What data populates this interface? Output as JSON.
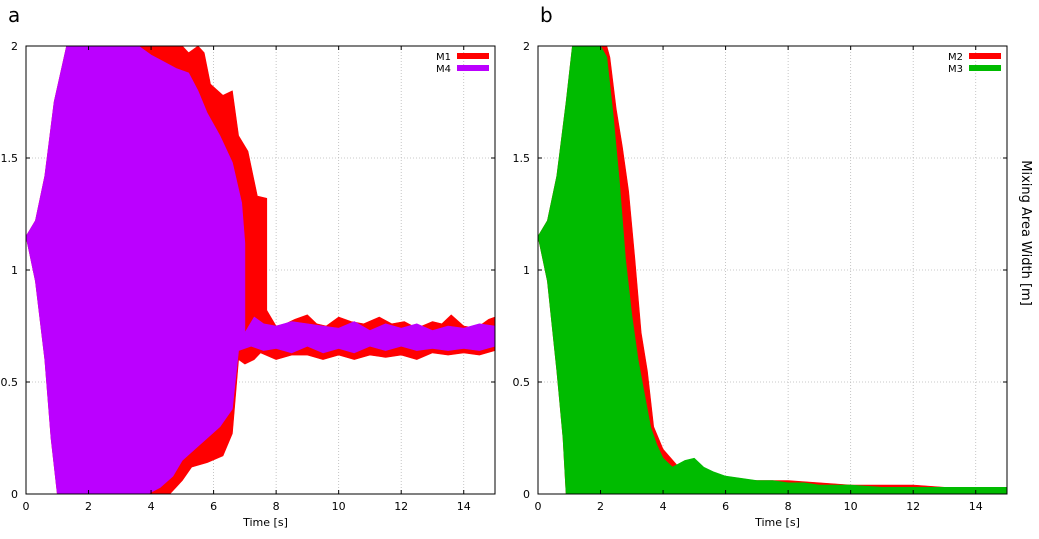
{
  "ylabel": "Mixing Area Width [m]",
  "chart_data": [
    {
      "type": "area",
      "panel_label": "a",
      "xlabel": "Time [s]",
      "xlim": [
        0,
        15
      ],
      "ylim": [
        0,
        2
      ],
      "xticks": [
        0,
        2,
        4,
        6,
        8,
        10,
        12,
        14
      ],
      "yticks": [
        0,
        0.5,
        1,
        1.5,
        2
      ],
      "ytick_labels": [
        "0",
        "0.5",
        "1",
        "1.5",
        "2"
      ],
      "grid": true,
      "legend_position": "top-right",
      "series": [
        {
          "name": "M1",
          "color": "#ff0000",
          "upper": [
            [
              0,
              1.15
            ],
            [
              0.3,
              1.22
            ],
            [
              0.6,
              1.42
            ],
            [
              0.9,
              1.75
            ],
            [
              1.3,
              2.0
            ],
            [
              5.0,
              2.0
            ],
            [
              5.2,
              1.97
            ],
            [
              5.5,
              2.0
            ],
            [
              5.7,
              1.97
            ],
            [
              5.9,
              1.83
            ],
            [
              6.3,
              1.78
            ],
            [
              6.6,
              1.8
            ],
            [
              6.8,
              1.6
            ],
            [
              7.1,
              1.53
            ],
            [
              7.4,
              1.33
            ],
            [
              7.7,
              1.32
            ],
            [
              7.7,
              0.82
            ],
            [
              8.0,
              0.75
            ],
            [
              8.3,
              0.76
            ],
            [
              8.6,
              0.78
            ],
            [
              9.0,
              0.8
            ],
            [
              9.3,
              0.76
            ],
            [
              9.6,
              0.75
            ],
            [
              10.0,
              0.79
            ],
            [
              10.4,
              0.77
            ],
            [
              10.8,
              0.76
            ],
            [
              11.3,
              0.79
            ],
            [
              11.7,
              0.76
            ],
            [
              12.1,
              0.77
            ],
            [
              12.5,
              0.74
            ],
            [
              13.0,
              0.77
            ],
            [
              13.3,
              0.76
            ],
            [
              13.6,
              0.8
            ],
            [
              14.0,
              0.75
            ],
            [
              14.4,
              0.74
            ],
            [
              14.8,
              0.78
            ],
            [
              15.0,
              0.79
            ]
          ],
          "lower": [
            [
              0,
              1.15
            ],
            [
              0.3,
              0.95
            ],
            [
              0.6,
              0.6
            ],
            [
              0.8,
              0.25
            ],
            [
              1.0,
              0.0
            ],
            [
              4.6,
              0.0
            ],
            [
              4.8,
              0.03
            ],
            [
              5.0,
              0.06
            ],
            [
              5.3,
              0.12
            ],
            [
              5.8,
              0.14
            ],
            [
              6.3,
              0.17
            ],
            [
              6.6,
              0.27
            ],
            [
              6.8,
              0.6
            ],
            [
              7.0,
              0.58
            ],
            [
              7.3,
              0.6
            ],
            [
              7.5,
              0.63
            ],
            [
              8.0,
              0.6
            ],
            [
              8.5,
              0.62
            ],
            [
              9.0,
              0.62
            ],
            [
              9.5,
              0.6
            ],
            [
              10.0,
              0.62
            ],
            [
              10.5,
              0.6
            ],
            [
              11.0,
              0.62
            ],
            [
              11.5,
              0.61
            ],
            [
              12.0,
              0.62
            ],
            [
              12.5,
              0.6
            ],
            [
              13.0,
              0.63
            ],
            [
              13.5,
              0.62
            ],
            [
              14.0,
              0.63
            ],
            [
              14.5,
              0.62
            ],
            [
              15.0,
              0.64
            ]
          ]
        },
        {
          "name": "M4",
          "color": "#bb00ff",
          "upper": [
            [
              0,
              1.15
            ],
            [
              0.3,
              1.22
            ],
            [
              0.6,
              1.42
            ],
            [
              0.9,
              1.75
            ],
            [
              1.3,
              2.0
            ],
            [
              3.6,
              2.0
            ],
            [
              4.0,
              1.96
            ],
            [
              4.4,
              1.93
            ],
            [
              4.8,
              1.9
            ],
            [
              5.2,
              1.88
            ],
            [
              5.5,
              1.8
            ],
            [
              5.8,
              1.7
            ],
            [
              6.2,
              1.6
            ],
            [
              6.6,
              1.48
            ],
            [
              6.9,
              1.3
            ],
            [
              7.0,
              1.12
            ],
            [
              7.0,
              0.72
            ],
            [
              7.3,
              0.79
            ],
            [
              7.6,
              0.76
            ],
            [
              8.0,
              0.75
            ],
            [
              8.5,
              0.77
            ],
            [
              9.0,
              0.76
            ],
            [
              9.5,
              0.75
            ],
            [
              10.0,
              0.74
            ],
            [
              10.5,
              0.77
            ],
            [
              11.0,
              0.73
            ],
            [
              11.5,
              0.76
            ],
            [
              12.0,
              0.74
            ],
            [
              12.5,
              0.76
            ],
            [
              13.0,
              0.73
            ],
            [
              13.5,
              0.75
            ],
            [
              14.0,
              0.74
            ],
            [
              14.5,
              0.76
            ],
            [
              15.0,
              0.75
            ]
          ],
          "lower": [
            [
              0,
              1.15
            ],
            [
              0.3,
              0.95
            ],
            [
              0.6,
              0.6
            ],
            [
              0.8,
              0.25
            ],
            [
              1.0,
              0.0
            ],
            [
              3.9,
              0.0
            ],
            [
              4.3,
              0.03
            ],
            [
              4.7,
              0.08
            ],
            [
              5.0,
              0.15
            ],
            [
              5.4,
              0.2
            ],
            [
              5.8,
              0.25
            ],
            [
              6.2,
              0.3
            ],
            [
              6.6,
              0.38
            ],
            [
              6.8,
              0.64
            ],
            [
              7.2,
              0.66
            ],
            [
              7.6,
              0.64
            ],
            [
              8.0,
              0.65
            ],
            [
              8.5,
              0.63
            ],
            [
              9.0,
              0.66
            ],
            [
              9.5,
              0.63
            ],
            [
              10.0,
              0.65
            ],
            [
              10.5,
              0.63
            ],
            [
              11.0,
              0.66
            ],
            [
              11.5,
              0.64
            ],
            [
              12.0,
              0.66
            ],
            [
              12.5,
              0.64
            ],
            [
              13.0,
              0.65
            ],
            [
              13.5,
              0.64
            ],
            [
              14.0,
              0.65
            ],
            [
              14.5,
              0.64
            ],
            [
              15.0,
              0.66
            ]
          ]
        }
      ]
    },
    {
      "type": "area",
      "panel_label": "b",
      "xlabel": "Time [s]",
      "xlim": [
        0,
        15
      ],
      "ylim": [
        0,
        2
      ],
      "xticks": [
        0,
        2,
        4,
        6,
        8,
        10,
        12,
        14
      ],
      "yticks": [
        0,
        0.5,
        1,
        1.5,
        2
      ],
      "ytick_labels": [
        "0",
        "0.5",
        "1",
        "1.5",
        "2"
      ],
      "grid": true,
      "legend_position": "top-right",
      "series": [
        {
          "name": "M2",
          "color": "#ff0000",
          "upper": [
            [
              0,
              1.15
            ],
            [
              0.3,
              1.22
            ],
            [
              0.6,
              1.42
            ],
            [
              0.9,
              1.75
            ],
            [
              1.1,
              2.0
            ],
            [
              2.2,
              2.0
            ],
            [
              2.3,
              1.95
            ],
            [
              2.5,
              1.72
            ],
            [
              2.7,
              1.55
            ],
            [
              2.9,
              1.35
            ],
            [
              3.1,
              1.05
            ],
            [
              3.3,
              0.72
            ],
            [
              3.5,
              0.55
            ],
            [
              3.7,
              0.3
            ],
            [
              4.0,
              0.2
            ],
            [
              4.5,
              0.12
            ],
            [
              5.0,
              0.1
            ],
            [
              5.5,
              0.08
            ],
            [
              6.0,
              0.07
            ],
            [
              7.0,
              0.06
            ],
            [
              8.0,
              0.06
            ],
            [
              9.0,
              0.05
            ],
            [
              10.0,
              0.04
            ],
            [
              11.0,
              0.04
            ],
            [
              12.0,
              0.04
            ],
            [
              13.0,
              0.03
            ],
            [
              14.0,
              0.03
            ],
            [
              15.0,
              0.03
            ]
          ],
          "lower": [
            [
              0,
              1.15
            ],
            [
              0.3,
              0.95
            ],
            [
              0.6,
              0.55
            ],
            [
              0.8,
              0.25
            ],
            [
              0.9,
              0.0
            ],
            [
              15.0,
              0.0
            ]
          ]
        },
        {
          "name": "M3",
          "color": "#00bb00",
          "upper": [
            [
              0,
              1.15
            ],
            [
              0.3,
              1.22
            ],
            [
              0.6,
              1.42
            ],
            [
              0.9,
              1.75
            ],
            [
              1.1,
              2.0
            ],
            [
              2.0,
              2.0
            ],
            [
              2.2,
              1.95
            ],
            [
              2.4,
              1.7
            ],
            [
              2.6,
              1.4
            ],
            [
              2.8,
              1.05
            ],
            [
              3.0,
              0.8
            ],
            [
              3.2,
              0.6
            ],
            [
              3.4,
              0.45
            ],
            [
              3.6,
              0.3
            ],
            [
              3.8,
              0.22
            ],
            [
              4.0,
              0.16
            ],
            [
              4.3,
              0.12
            ],
            [
              4.7,
              0.15
            ],
            [
              5.0,
              0.16
            ],
            [
              5.3,
              0.12
            ],
            [
              5.6,
              0.1
            ],
            [
              6.0,
              0.08
            ],
            [
              6.5,
              0.07
            ],
            [
              7.0,
              0.06
            ],
            [
              7.5,
              0.06
            ],
            [
              8.0,
              0.05
            ],
            [
              8.5,
              0.05
            ],
            [
              9.0,
              0.04
            ],
            [
              10.0,
              0.04
            ],
            [
              11.0,
              0.03
            ],
            [
              12.0,
              0.03
            ],
            [
              13.0,
              0.03
            ],
            [
              14.0,
              0.03
            ],
            [
              15.0,
              0.03
            ]
          ],
          "lower": [
            [
              0,
              1.15
            ],
            [
              0.3,
              0.95
            ],
            [
              0.6,
              0.55
            ],
            [
              0.8,
              0.25
            ],
            [
              0.9,
              0.0
            ],
            [
              15.0,
              0.0
            ]
          ]
        }
      ]
    }
  ]
}
